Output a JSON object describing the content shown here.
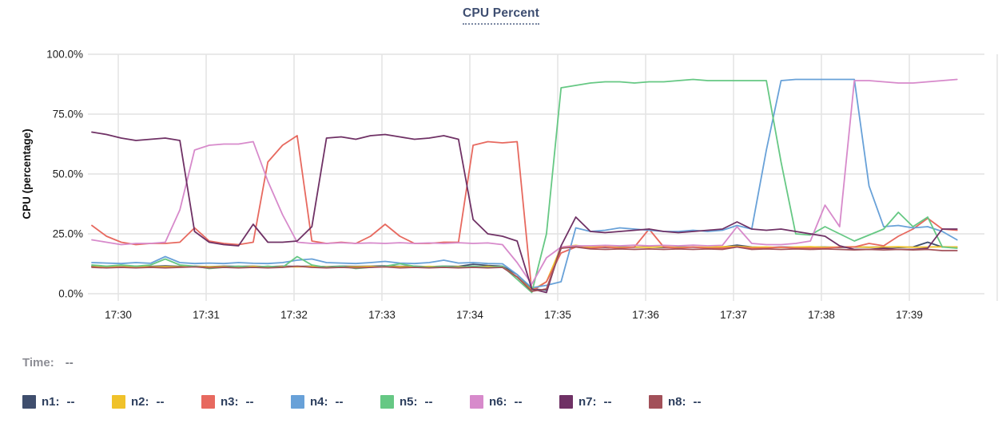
{
  "title": {
    "text": "CPU Percent"
  },
  "time_row": {
    "label": "Time:",
    "value": "--"
  },
  "legend": [
    {
      "label": "n1:",
      "value": "--",
      "color": "#3f4e6d"
    },
    {
      "label": "n2:",
      "value": "--",
      "color": "#f0c22a"
    },
    {
      "label": "n3:",
      "value": "--",
      "color": "#e7695f"
    },
    {
      "label": "n4:",
      "value": "--",
      "color": "#68a1d8"
    },
    {
      "label": "n5:",
      "value": "--",
      "color": "#66c884"
    },
    {
      "label": "n6:",
      "value": "--",
      "color": "#d78acb"
    },
    {
      "label": "n7:",
      "value": "--",
      "color": "#6f3165"
    },
    {
      "label": "n8:",
      "value": "--",
      "color": "#a25059"
    }
  ],
  "chart_data": {
    "type": "line",
    "title": "CPU Percent",
    "xlabel": "",
    "ylabel": "CPU (percentage)",
    "ylim": [
      0,
      100
    ],
    "grid": true,
    "y_tick_values": [
      0,
      25,
      50,
      75,
      100
    ],
    "y_tick_labels": [
      "0.0%",
      "25.0%",
      "50.0%",
      "75.0%",
      "100.0%"
    ],
    "x_tick_labels": [
      "17:30",
      "17:31",
      "17:32",
      "17:33",
      "17:34",
      "17:35",
      "17:36",
      "17:37",
      "17:38",
      "17:39"
    ],
    "x_start_time": "17:29:42",
    "sample_interval_seconds": 10,
    "series": [
      {
        "name": "n1",
        "color": "#3f4e6d",
        "values": [
          11.5,
          11.4,
          11.3,
          11.5,
          11.4,
          11.6,
          11.4,
          11.5,
          11.3,
          11.5,
          11.4,
          11.5,
          11.3,
          11.5,
          11.4,
          11.5,
          11.3,
          11.5,
          11.4,
          11.5,
          11.6,
          11.4,
          11.5,
          11.3,
          11.5,
          11.4,
          12.3,
          11.8,
          11.5,
          8,
          2,
          1.5,
          19,
          20,
          19.5,
          19.3,
          19.5,
          19.4,
          19.5,
          19.3,
          19.5,
          19.4,
          19.3,
          19.5,
          20.3,
          19.5,
          19.3,
          19.5,
          19.4,
          19.5,
          19.5,
          19.3,
          19.5,
          19.4,
          19.5,
          19.3,
          19.5,
          21.5,
          19.5,
          19.5
        ]
      },
      {
        "name": "n2",
        "color": "#f0c22a",
        "values": [
          11.2,
          11.3,
          11.2,
          11.4,
          11.2,
          11.3,
          11.2,
          11.4,
          11.2,
          11.3,
          11.2,
          11.4,
          11.2,
          11.3,
          11.2,
          11.4,
          11.2,
          11.3,
          11.2,
          11.4,
          11.2,
          11.3,
          11.2,
          11.4,
          11.2,
          11.3,
          11.2,
          11.4,
          11.2,
          7,
          1.5,
          5,
          19.5,
          20.2,
          19.4,
          19.6,
          19.3,
          19.5,
          19.4,
          19.6,
          19.3,
          19.5,
          19.4,
          19.6,
          19.8,
          19.4,
          19.5,
          19.3,
          19.5,
          19.6,
          19.4,
          19.5,
          19.6,
          19.4,
          19.5,
          19.6,
          19.4,
          19.5,
          19.6,
          19.5
        ]
      },
      {
        "name": "n3",
        "color": "#e7695f",
        "values": [
          28.5,
          24,
          21.5,
          20.5,
          21,
          21,
          21.5,
          27.5,
          22,
          21,
          20.5,
          21.5,
          55,
          62,
          66,
          22,
          21,
          21.5,
          21,
          24,
          29,
          24,
          21,
          21,
          21.5,
          21.5,
          62,
          63.5,
          63,
          63.5,
          1,
          5,
          17,
          19.5,
          19,
          19.5,
          19,
          19.5,
          27,
          19.5,
          19,
          19.5,
          19,
          19,
          19.5,
          19,
          19,
          19.5,
          19,
          19,
          19,
          19.5,
          19.5,
          21,
          20,
          24,
          27,
          31.5,
          27,
          26.5
        ]
      },
      {
        "name": "n4",
        "color": "#68a1d8",
        "values": [
          13,
          12.8,
          12.6,
          13,
          12.7,
          15.5,
          13,
          12.6,
          12.8,
          12.6,
          13,
          12.7,
          12.6,
          13,
          14,
          14.5,
          13,
          12.8,
          12.6,
          13,
          13.5,
          12.8,
          12.6,
          13,
          14,
          12.8,
          13,
          12.6,
          12.5,
          8,
          2.5,
          3.5,
          5,
          27.5,
          26,
          26.5,
          27.5,
          27,
          26.5,
          26,
          26,
          26.5,
          26,
          26.5,
          28.5,
          27,
          60,
          89,
          89.5,
          89.5,
          89.5,
          89.5,
          89.5,
          45,
          28,
          28.5,
          27.5,
          28,
          26,
          22.5
        ]
      },
      {
        "name": "n5",
        "color": "#66c884",
        "values": [
          12,
          11.5,
          12,
          11.5,
          12,
          14.5,
          12,
          11.5,
          10.5,
          11,
          11.5,
          11,
          11.5,
          11,
          15.5,
          12,
          11,
          11.5,
          10.5,
          11,
          11.5,
          12.5,
          11.5,
          11,
          11.5,
          11,
          11.5,
          11,
          11.5,
          6,
          0.5,
          25,
          86,
          87,
          88,
          88.5,
          88.5,
          88,
          88.5,
          88.5,
          89,
          89.5,
          89,
          89,
          89,
          89,
          89,
          55,
          25,
          24.5,
          28,
          25,
          22,
          24.5,
          27,
          34,
          28,
          32,
          19.5,
          19
        ]
      },
      {
        "name": "n6",
        "color": "#d78acb",
        "values": [
          22.5,
          21.5,
          20.5,
          21,
          21,
          21.5,
          35,
          60,
          62,
          62.5,
          62.5,
          63.5,
          47,
          33,
          21.5,
          21,
          21,
          21.3,
          21,
          21.2,
          21,
          21.3,
          21,
          21.2,
          21,
          21.3,
          21,
          21.2,
          20.5,
          13,
          4,
          15,
          19.5,
          20,
          20,
          20.2,
          20,
          20.3,
          20,
          20.2,
          20,
          20.3,
          20,
          20.2,
          28,
          21,
          20.5,
          20.5,
          21,
          22,
          37,
          28,
          89,
          89,
          88.5,
          88,
          88,
          88.5,
          89,
          89.5
        ]
      },
      {
        "name": "n7",
        "color": "#6f3165",
        "values": [
          67.5,
          66.5,
          65,
          64,
          64.5,
          65,
          64,
          26,
          21.5,
          20.5,
          20,
          29,
          21.5,
          21.5,
          22,
          28,
          65,
          65.5,
          64.5,
          66,
          66.5,
          65.5,
          64.5,
          65,
          66,
          64.5,
          31,
          25,
          24,
          22,
          2,
          0.5,
          20,
          32,
          26,
          25.5,
          26,
          26.5,
          27,
          26,
          25.5,
          26,
          26.5,
          27,
          30,
          27,
          26.5,
          27,
          26,
          25,
          24,
          20,
          18.5,
          18.5,
          19,
          18.5,
          18.5,
          19,
          27,
          27
        ]
      },
      {
        "name": "n8",
        "color": "#a25059",
        "values": [
          11,
          10.8,
          11,
          10.8,
          11,
          10.8,
          11,
          11.2,
          10.8,
          11,
          10.8,
          11,
          10.8,
          11,
          11.5,
          11,
          10.8,
          11,
          10.8,
          11,
          11.2,
          10.8,
          11,
          10.8,
          11,
          10.8,
          11,
          10.8,
          11,
          7,
          1,
          2,
          19,
          19.5,
          18.7,
          18.5,
          18.7,
          18.5,
          18.7,
          18.5,
          18.7,
          18.5,
          18.7,
          18.5,
          19.5,
          18.5,
          18.7,
          18.5,
          18.7,
          18.5,
          18.7,
          18.5,
          18.3,
          18.5,
          18.3,
          18.5,
          18.3,
          18.5,
          18,
          18
        ]
      }
    ]
  }
}
